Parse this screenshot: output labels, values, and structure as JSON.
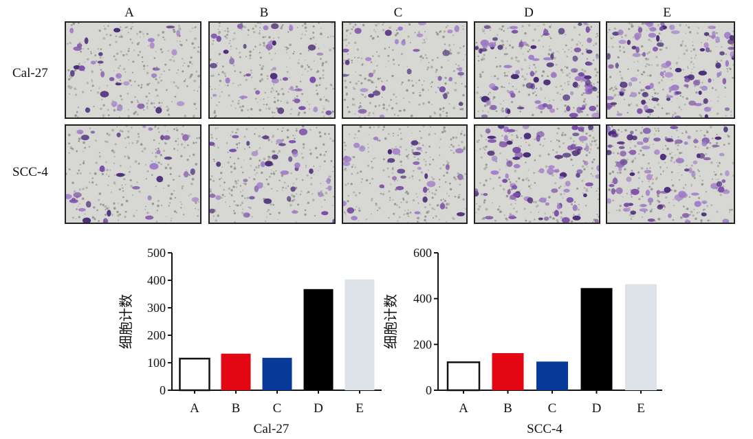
{
  "micrograph_panel": {
    "columns": [
      "A",
      "B",
      "C",
      "D",
      "E"
    ],
    "rows": [
      "Cal-27",
      "SCC-4"
    ],
    "cell_stain_color": "#7b4ea8",
    "background_color": "#d7d7d3"
  },
  "chart_data": [
    {
      "type": "bar",
      "categories": [
        "A",
        "B",
        "C",
        "D",
        "E"
      ],
      "values": [
        115,
        133,
        118,
        368,
        403
      ],
      "colors": [
        "#ffffff",
        "#e30613",
        "#083a9a",
        "#000000",
        "#dde2e8"
      ],
      "title": "",
      "xlabel": "Cal-27",
      "ylabel": "细胞计数",
      "ylim": [
        0,
        500
      ],
      "yticks": [
        0,
        100,
        200,
        300,
        400,
        500
      ],
      "grid": false
    },
    {
      "type": "bar",
      "categories": [
        "A",
        "B",
        "C",
        "D",
        "E"
      ],
      "values": [
        122,
        162,
        125,
        446,
        463
      ],
      "colors": [
        "#ffffff",
        "#e30613",
        "#083a9a",
        "#000000",
        "#dde2e8"
      ],
      "title": "",
      "xlabel": "SCC-4",
      "ylabel": "细胞计数",
      "ylim": [
        0,
        600
      ],
      "yticks": [
        0,
        200,
        400,
        600
      ],
      "grid": false
    }
  ]
}
